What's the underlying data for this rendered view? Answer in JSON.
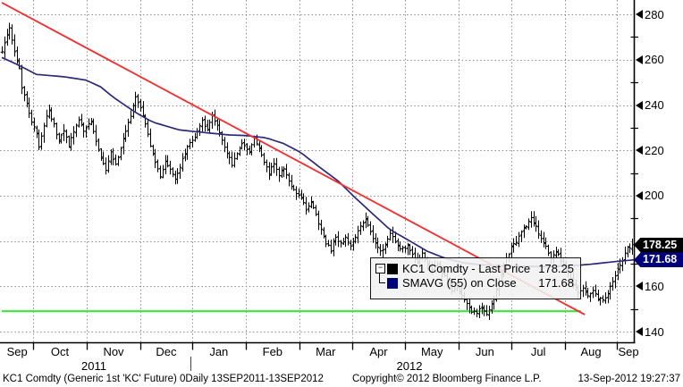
{
  "footer": {
    "description": "KC1 Comdty (Generic 1st 'KC' Future) 0Daily 13SEP2011-13SEP2012",
    "copyright": "Copyright© 2012 Bloomberg Finance L.P.",
    "timestamp": "13-Sep-2012 19:27:37"
  },
  "legend": {
    "rows": [
      {
        "label": "KC1 Comdty - Last Price",
        "value": "178.25",
        "swatch": "#000000"
      },
      {
        "label": "SMAVG (55) on Close",
        "value": "171.68",
        "swatch": "#00007a"
      }
    ],
    "tree_icon_glyph": "−"
  },
  "price_badges": [
    {
      "text": "178.25",
      "bg": "#000000",
      "price": 178.25
    },
    {
      "text": "171.68",
      "bg": "#00007a",
      "price": 171.68
    }
  ],
  "chart_data": {
    "type": "ohlc",
    "symbol": "KC1 Comdty",
    "x_range_labels": [
      "13SEP2011",
      "13SEP2012"
    ],
    "bars_total": 256,
    "y_axis": {
      "min": 140,
      "max": 287,
      "tick_labels": [
        280,
        260,
        240,
        220,
        200,
        160,
        140
      ],
      "hidden_label_under_badges": 180,
      "grid_prices": [
        140,
        160,
        180,
        200,
        220,
        240,
        260,
        280
      ],
      "minor_tick_step": 10
    },
    "x_axis": {
      "months": [
        {
          "label": "Sep",
          "center_day": 6.2
        },
        {
          "label": "Oct",
          "center_day": 23.5
        },
        {
          "label": "Nov",
          "center_day": 45.2
        },
        {
          "label": "Dec",
          "center_day": 66.5
        },
        {
          "label": "Jan",
          "center_day": 87.8
        },
        {
          "label": "Feb",
          "center_day": 109.5
        },
        {
          "label": "Mar",
          "center_day": 131.0
        },
        {
          "label": "Apr",
          "center_day": 152.4
        },
        {
          "label": "May",
          "center_day": 174.0
        },
        {
          "label": "Jun",
          "center_day": 195.4
        },
        {
          "label": "Jul",
          "center_day": 217.0
        },
        {
          "label": "Aug",
          "center_day": 238.3
        },
        {
          "label": "Sep",
          "center_day": 253.5
        }
      ],
      "month_boundary_days": [
        12.7,
        34.4,
        56.0,
        77.0,
        98.7,
        120.4,
        141.7,
        163.1,
        184.8,
        206.1,
        227.8,
        248.8
      ],
      "years": [
        "2011",
        "2012"
      ],
      "year_divider_day": 77.0
    },
    "series": [
      {
        "name": "KC1 Comdty - Last Price",
        "render": "ohlc_bars",
        "color": "#000000",
        "last_value": 178.25,
        "close_anchors": [
          [
            0,
            263
          ],
          [
            2,
            271
          ],
          [
            3,
            274
          ],
          [
            5,
            264
          ],
          [
            7,
            257
          ],
          [
            8,
            248
          ],
          [
            10,
            240
          ],
          [
            12,
            233
          ],
          [
            14,
            227
          ],
          [
            15,
            222
          ],
          [
            17,
            231
          ],
          [
            19,
            238
          ],
          [
            21,
            231
          ],
          [
            23,
            224
          ],
          [
            25,
            229
          ],
          [
            27,
            222
          ],
          [
            29,
            228
          ],
          [
            31,
            234
          ],
          [
            33,
            229
          ],
          [
            36,
            233
          ],
          [
            38,
            224
          ],
          [
            40,
            216
          ],
          [
            42,
            211
          ],
          [
            44,
            219
          ],
          [
            46,
            214
          ],
          [
            48,
            221
          ],
          [
            50,
            228
          ],
          [
            52,
            235
          ],
          [
            54,
            243
          ],
          [
            56,
            239
          ],
          [
            58,
            231
          ],
          [
            60,
            222
          ],
          [
            62,
            214
          ],
          [
            64,
            209
          ],
          [
            66,
            215
          ],
          [
            68,
            211
          ],
          [
            70,
            207
          ],
          [
            72,
            213
          ],
          [
            74,
            219
          ],
          [
            76,
            223
          ],
          [
            79,
            228
          ],
          [
            81,
            233
          ],
          [
            83,
            229
          ],
          [
            85,
            236
          ],
          [
            87,
            231
          ],
          [
            89,
            225
          ],
          [
            91,
            219
          ],
          [
            93,
            214
          ],
          [
            95,
            219
          ],
          [
            97,
            223
          ],
          [
            100,
            219
          ],
          [
            102,
            226
          ],
          [
            104,
            221
          ],
          [
            106,
            215
          ],
          [
            108,
            210
          ],
          [
            110,
            214
          ],
          [
            112,
            209
          ],
          [
            114,
            212
          ],
          [
            116,
            206
          ],
          [
            118,
            203
          ],
          [
            121,
            199
          ],
          [
            123,
            194
          ],
          [
            125,
            197
          ],
          [
            127,
            191
          ],
          [
            129,
            185
          ],
          [
            131,
            179
          ],
          [
            133,
            176
          ],
          [
            135,
            182
          ],
          [
            137,
            179
          ],
          [
            139,
            181
          ],
          [
            141,
            178
          ],
          [
            143,
            182
          ],
          [
            145,
            187
          ],
          [
            147,
            190
          ],
          [
            149,
            184
          ],
          [
            151,
            179
          ],
          [
            153,
            175
          ],
          [
            155,
            178
          ],
          [
            157,
            183
          ],
          [
            159,
            180
          ],
          [
            161,
            176
          ],
          [
            164,
            178
          ],
          [
            166,
            174
          ],
          [
            168,
            171
          ],
          [
            170,
            174
          ],
          [
            172,
            170
          ],
          [
            174,
            167
          ],
          [
            176,
            170
          ],
          [
            178,
            166
          ],
          [
            180,
            162
          ],
          [
            182,
            158
          ],
          [
            184,
            159
          ],
          [
            186,
            156
          ],
          [
            188,
            152
          ],
          [
            190,
            149
          ],
          [
            192,
            148
          ],
          [
            194,
            151
          ],
          [
            196,
            148
          ],
          [
            198,
            152
          ],
          [
            200,
            158
          ],
          [
            202,
            165
          ],
          [
            204,
            172
          ],
          [
            206,
            177
          ],
          [
            208,
            180
          ],
          [
            210,
            184
          ],
          [
            212,
            187
          ],
          [
            214,
            190
          ],
          [
            216,
            186
          ],
          [
            218,
            181
          ],
          [
            220,
            177
          ],
          [
            222,
            173
          ],
          [
            224,
            176
          ],
          [
            226,
            171
          ],
          [
            229,
            166
          ],
          [
            231,
            161
          ],
          [
            233,
            157
          ],
          [
            235,
            160
          ],
          [
            237,
            156
          ],
          [
            239,
            158
          ],
          [
            241,
            155
          ],
          [
            243,
            154
          ],
          [
            245,
            157
          ],
          [
            247,
            162
          ],
          [
            249,
            167
          ],
          [
            251,
            171
          ],
          [
            252,
            174
          ],
          [
            253,
            177
          ],
          [
            254,
            177
          ],
          [
            255,
            178.25
          ]
        ]
      },
      {
        "name": "SMAVG (55) on Close",
        "render": "line",
        "color": "#2a2a78",
        "last_value": 171.68,
        "anchors": [
          [
            0,
            261
          ],
          [
            7,
            257.5
          ],
          [
            14,
            253.5
          ],
          [
            25,
            252.5
          ],
          [
            34,
            251
          ],
          [
            40,
            248
          ],
          [
            45,
            243.5
          ],
          [
            51,
            239
          ],
          [
            56,
            235.5
          ],
          [
            61,
            232.5
          ],
          [
            67,
            230.5
          ],
          [
            72,
            229
          ],
          [
            78,
            228.3
          ],
          [
            85,
            227.5
          ],
          [
            92,
            226.8
          ],
          [
            99,
            226.5
          ],
          [
            107,
            225.5
          ],
          [
            114,
            223
          ],
          [
            121,
            219
          ],
          [
            128,
            213
          ],
          [
            136,
            206.5
          ],
          [
            143,
            199
          ],
          [
            150,
            192
          ],
          [
            157,
            185
          ],
          [
            165,
            180
          ],
          [
            172,
            175.5
          ],
          [
            179,
            172.5
          ],
          [
            186,
            170.5
          ],
          [
            193,
            169.5
          ],
          [
            202,
            169
          ],
          [
            212,
            168.8
          ],
          [
            221,
            168.7
          ],
          [
            230,
            169
          ],
          [
            239,
            169.8
          ],
          [
            248,
            170.9
          ],
          [
            256,
            171.68
          ]
        ]
      }
    ],
    "annotations": [
      {
        "type": "trendline",
        "color": "#ee3434",
        "from_day": 0,
        "from_price": 285.2,
        "to_day": 235.8,
        "to_price": 147.5
      },
      {
        "type": "support_line",
        "color": "#3fe43f",
        "price": 149,
        "from_day": 0,
        "to_day": 234.3
      }
    ],
    "grid": {
      "show": true,
      "color": "#8c8c8c",
      "style": "dotted"
    }
  }
}
